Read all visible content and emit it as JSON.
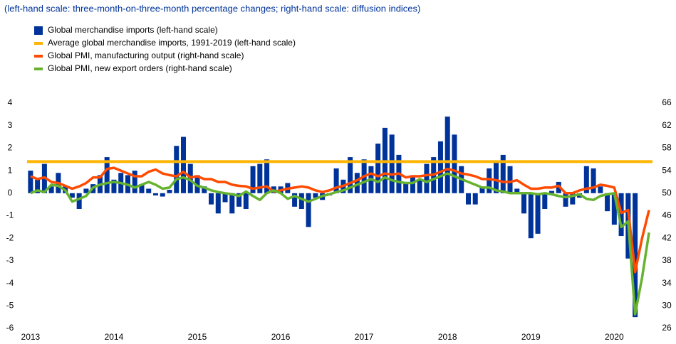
{
  "chart_data": {
    "type": "bar",
    "subtitle": "(left-hand scale: three-month-on-three-month percentage changes; right-hand scale: diffusion indices)",
    "categories": [
      "2013",
      null,
      null,
      null,
      null,
      null,
      null,
      null,
      null,
      null,
      null,
      null,
      "2014",
      null,
      null,
      null,
      null,
      null,
      null,
      null,
      null,
      null,
      null,
      null,
      "2015",
      null,
      null,
      null,
      null,
      null,
      null,
      null,
      null,
      null,
      null,
      null,
      "2016",
      null,
      null,
      null,
      null,
      null,
      null,
      null,
      null,
      null,
      null,
      null,
      "2017",
      null,
      null,
      null,
      null,
      null,
      null,
      null,
      null,
      null,
      null,
      null,
      "2018",
      null,
      null,
      null,
      null,
      null,
      null,
      null,
      null,
      null,
      null,
      null,
      "2019",
      null,
      null,
      null,
      null,
      null,
      null,
      null,
      null,
      null,
      null,
      null,
      "2020",
      null,
      null,
      null,
      null,
      null
    ],
    "ylim": [
      -6,
      4
    ],
    "yticks": [
      -6,
      -5,
      -4,
      -3,
      -2,
      -1,
      0,
      1,
      2,
      3,
      4
    ],
    "y2lim": [
      26,
      66
    ],
    "y2ticks": [
      26,
      30,
      34,
      38,
      42,
      46,
      50,
      54,
      58,
      62,
      66
    ],
    "series": [
      {
        "name": "Global merchandise imports (left-hand scale)",
        "type": "bar",
        "color": "#003399",
        "values": [
          1.0,
          0.6,
          1.3,
          0.3,
          0.9,
          0.3,
          -0.2,
          -0.7,
          0.2,
          0.4,
          0.8,
          1.6,
          0.6,
          0.9,
          0.8,
          1.0,
          0.4,
          0.2,
          -0.1,
          -0.15,
          0.15,
          2.1,
          2.5,
          1.3,
          0.8,
          0.3,
          -0.5,
          -0.9,
          -0.4,
          -0.9,
          -0.6,
          -0.7,
          1.2,
          1.3,
          1.5,
          0.3,
          0.3,
          0.45,
          -0.6,
          -0.7,
          -1.5,
          -0.2,
          -0.3,
          -0.1,
          1.1,
          0.6,
          1.6,
          0.9,
          1.5,
          1.2,
          2.2,
          2.9,
          2.6,
          1.7,
          0.5,
          0.8,
          0.6,
          1.3,
          1.6,
          2.3,
          3.4,
          2.6,
          1.2,
          -0.5,
          -0.5,
          0.3,
          1.1,
          1.4,
          1.7,
          1.2,
          0.2,
          -0.9,
          -2.0,
          -1.8,
          -0.7,
          0.1,
          0.5,
          -0.6,
          -0.5,
          -0.2,
          1.2,
          1.1,
          0.3,
          -0.8,
          -1.4,
          -1.9,
          -2.9,
          -5.5,
          null,
          null
        ]
      },
      {
        "name": "Average global merchandise imports, 1991-2019 (left-hand scale)",
        "type": "hline",
        "color": "#ffb400",
        "value": 1.4
      },
      {
        "name": "Global PMI, manufacturing output (right-hand scale)",
        "type": "line",
        "axis": "y2",
        "color": "#ff4b00",
        "values": [
          53.0,
          52.5,
          52.8,
          52.0,
          51.8,
          51.3,
          50.8,
          51.2,
          51.8,
          52.8,
          52.8,
          54.3,
          54.5,
          54.0,
          53.5,
          53.0,
          53.0,
          53.8,
          54.2,
          53.5,
          53.2,
          53.0,
          53.8,
          52.8,
          53.0,
          52.5,
          52.5,
          52.0,
          52.0,
          51.5,
          51.3,
          51.2,
          50.8,
          51.0,
          51.2,
          50.3,
          50.5,
          50.8,
          51.0,
          51.2,
          51.0,
          50.5,
          50.2,
          50.5,
          51.0,
          51.3,
          51.8,
          52.3,
          53.0,
          53.5,
          53.0,
          53.5,
          53.3,
          53.5,
          52.8,
          53.0,
          53.0,
          53.2,
          53.3,
          53.8,
          54.3,
          54.0,
          53.5,
          53.3,
          53.0,
          52.5,
          52.5,
          52.3,
          52.0,
          52.0,
          52.3,
          51.5,
          50.8,
          50.8,
          51.0,
          51.0,
          51.3,
          50.0,
          50.0,
          50.5,
          50.8,
          51.0,
          51.5,
          51.3,
          51.0,
          46.5,
          47.0,
          36.0,
          42.0,
          47.0
        ]
      },
      {
        "name": "Global PMI, new export orders (right-hand scale)",
        "type": "line",
        "axis": "y2",
        "color": "#65b32e",
        "values": [
          50.0,
          50.5,
          50.2,
          51.5,
          51.3,
          50.5,
          48.5,
          49.0,
          49.5,
          51.0,
          51.5,
          51.8,
          52.0,
          51.8,
          51.5,
          51.0,
          51.5,
          52.0,
          51.5,
          50.8,
          51.0,
          52.5,
          52.8,
          52.3,
          51.3,
          51.0,
          50.5,
          50.2,
          50.0,
          49.8,
          49.5,
          50.3,
          49.5,
          48.8,
          50.0,
          50.5,
          50.0,
          49.0,
          49.5,
          49.0,
          48.5,
          49.0,
          49.5,
          49.8,
          50.2,
          50.5,
          51.0,
          51.5,
          52.0,
          52.5,
          52.0,
          52.8,
          52.3,
          52.0,
          51.8,
          51.8,
          52.5,
          52.0,
          52.5,
          53.0,
          53.5,
          53.0,
          52.5,
          52.0,
          51.5,
          51.0,
          51.0,
          50.5,
          50.3,
          50.0,
          50.0,
          50.0,
          50.0,
          49.8,
          50.0,
          49.8,
          49.5,
          49.3,
          49.5,
          49.8,
          49.0,
          48.8,
          49.5,
          49.8,
          50.0,
          44.0,
          45.0,
          28.5,
          35.0,
          43.0
        ]
      }
    ]
  }
}
